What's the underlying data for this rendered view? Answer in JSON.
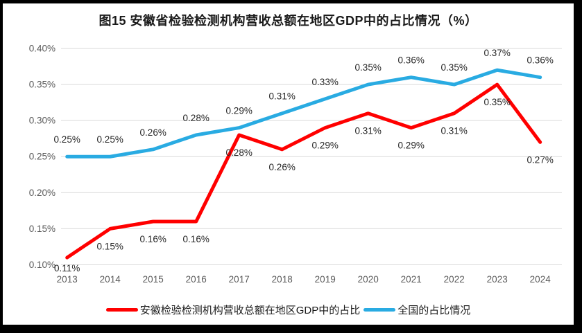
{
  "chart_data": {
    "type": "line",
    "title": "图15 安徽省检验检测机构营收总额在地区GDP中的占比情况（%）",
    "categories": [
      "2013",
      "2014",
      "2015",
      "2016",
      "2017",
      "2018",
      "2019",
      "2020",
      "2021",
      "2022",
      "2023",
      "2024"
    ],
    "series": [
      {
        "name": "安徽检验检测机构营收总额在地区GDP中的占比",
        "color": "#FF0000",
        "values": [
          0.11,
          0.15,
          0.16,
          0.16,
          0.28,
          0.26,
          0.29,
          0.31,
          0.29,
          0.31,
          0.35,
          0.27
        ],
        "labels": [
          "0.11%",
          "0.15%",
          "0.16%",
          "0.16%",
          "0.28%",
          "0.26%",
          "0.29%",
          "0.31%",
          "0.29%",
          "0.31%",
          "0.35%",
          "0.27%"
        ],
        "label_position": "below"
      },
      {
        "name": "全国的占比情况",
        "color": "#29ABE2",
        "values": [
          0.25,
          0.25,
          0.26,
          0.28,
          0.29,
          0.31,
          0.33,
          0.35,
          0.36,
          0.35,
          0.37,
          0.36
        ],
        "labels": [
          "0.25%",
          "0.25%",
          "0.26%",
          "0.28%",
          "0.29%",
          "0.31%",
          "0.33%",
          "0.35%",
          "0.36%",
          "0.35%",
          "0.37%",
          "0.36%"
        ],
        "label_position": "above"
      }
    ],
    "xlabel": "",
    "ylabel": "",
    "ylim": [
      0.1,
      0.4
    ],
    "ytick_step": 0.05,
    "ytick_labels": [
      "0.40%",
      "0.35%",
      "0.30%",
      "0.25%",
      "0.20%",
      "0.15%",
      "0.10%"
    ],
    "grid": true,
    "legend_position": "bottom",
    "colors": {
      "grid": "#d9d9d9",
      "axis_text": "#595959",
      "data_label_text": "#262626"
    }
  }
}
